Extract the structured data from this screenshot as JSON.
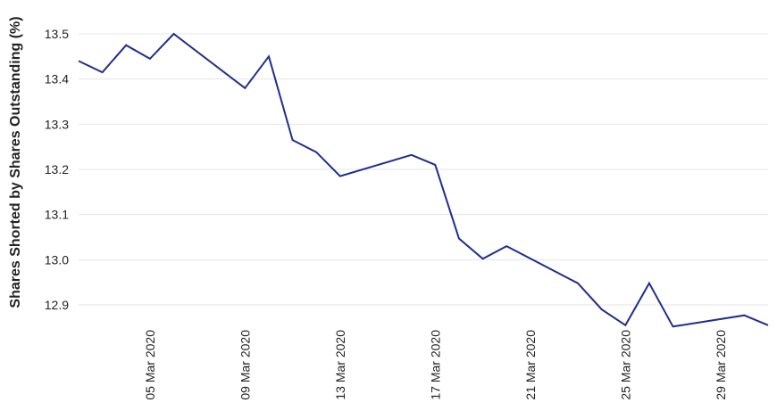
{
  "chart_data": {
    "type": "line",
    "ylabel": "Shares Shorted by Shares Outstanding (%)",
    "xlabel": "",
    "ylim": [
      12.86,
      13.5
    ],
    "yticks": [
      "12.9",
      "13.0",
      "13.1",
      "13.2",
      "13.3",
      "13.4",
      "13.5"
    ],
    "xticks": [
      "05 Mar 2020",
      "09 Mar 2020",
      "13 Mar 2020",
      "17 Mar 2020",
      "21 Mar 2020",
      "25 Mar 2020",
      "29 Mar 2020"
    ],
    "grid": "horizontal",
    "line_color": "#1f2f8a",
    "x": [
      "02 Mar 2020",
      "03 Mar 2020",
      "04 Mar 2020",
      "05 Mar 2020",
      "06 Mar 2020",
      "09 Mar 2020",
      "10 Mar 2020",
      "11 Mar 2020",
      "12 Mar 2020",
      "13 Mar 2020",
      "16 Mar 2020",
      "17 Mar 2020",
      "18 Mar 2020",
      "19 Mar 2020",
      "20 Mar 2020",
      "23 Mar 2020",
      "24 Mar 2020",
      "25 Mar 2020",
      "26 Mar 2020",
      "27 Mar 2020",
      "30 Mar 2020",
      "31 Mar 2020"
    ],
    "values": [
      13.44,
      13.415,
      13.475,
      13.445,
      13.5,
      13.38,
      13.45,
      13.265,
      13.238,
      13.185,
      13.232,
      13.21,
      13.047,
      13.002,
      13.03,
      12.948,
      12.89,
      12.855,
      12.948,
      12.852,
      12.877,
      12.855
    ]
  }
}
